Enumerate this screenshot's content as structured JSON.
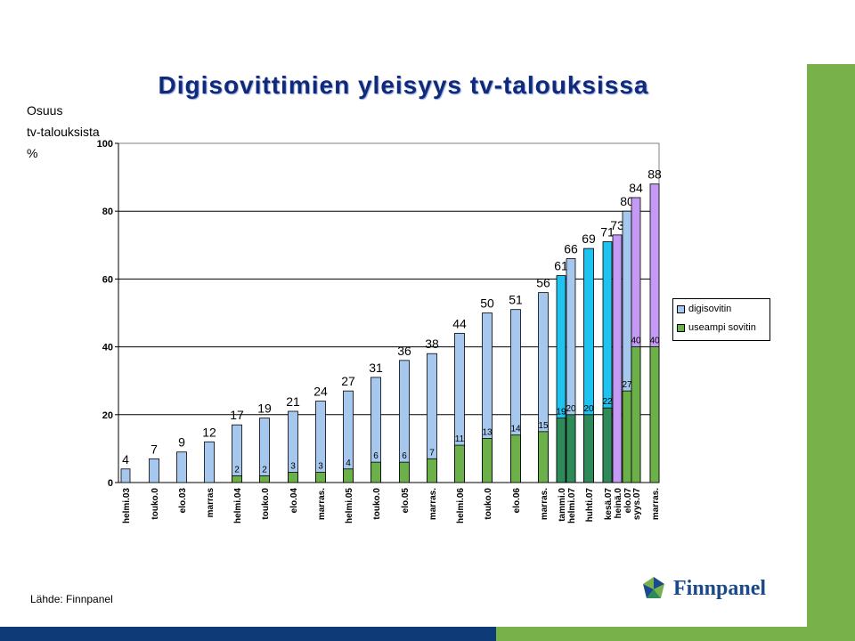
{
  "title": "Digisovittimien yleisyys tv-talouksissa",
  "ylabel_lines": [
    "Osuus",
    "tv-talouksista",
    "%"
  ],
  "source": "Lähde: Finnpanel",
  "logo_text": "Finnpanel",
  "colors": {
    "digisovitin_light": "#a6c8ef",
    "digisovitin_cyan": "#1fc3f0",
    "digisovitin_purple": "#c59af4",
    "useampi_light": "#6cb049",
    "useampi_dark": "#2e8a58",
    "accent_green": "#78b04a",
    "navy": "#0e3b78",
    "title": "#10297a"
  },
  "chart_data": {
    "type": "bar",
    "title": "Digisovittimien yleisyys tv-talouksissa",
    "ylabel": "Osuus tv-talouksista %",
    "ylim": [
      0,
      100
    ],
    "yticks": [
      0,
      20,
      40,
      60,
      80,
      100
    ],
    "grid": true,
    "legend_position": "right",
    "categories": [
      "helmi.03",
      "touko.0",
      "elo.03",
      "marras",
      "helmi.04",
      "touko.0",
      "elo.04",
      "marras.",
      "helmi.05",
      "touko.0",
      "elo.05",
      "marras.",
      "helmi.06",
      "touko.0",
      "elo.06",
      "marras.",
      "tammi.0",
      "helmi.07",
      "huhti.07",
      "kesä.07",
      "heinä.0",
      "elo.07",
      "syys.07",
      "marras."
    ],
    "series": [
      {
        "name": "digisovitin",
        "values": [
          4,
          7,
          9,
          12,
          17,
          19,
          21,
          24,
          27,
          31,
          36,
          38,
          44,
          50,
          51,
          56,
          61,
          66,
          69,
          71,
          73,
          80,
          84,
          88
        ],
        "labels": [
          "4",
          "7",
          "9",
          "12",
          "17",
          "19",
          "21",
          "24",
          "27",
          "31",
          "36",
          "38",
          "44",
          "50",
          "51",
          "56",
          "61",
          "66",
          "69",
          "71",
          "73",
          "80",
          "84",
          "88"
        ]
      },
      {
        "name": "useampi sovitin",
        "values": [
          null,
          null,
          null,
          null,
          2,
          2,
          3,
          3,
          4,
          6,
          6,
          7,
          11,
          13,
          14,
          15,
          19,
          20,
          20,
          22,
          null,
          27,
          40,
          40
        ],
        "labels": [
          "",
          "",
          "",
          "",
          "2",
          "2",
          "3",
          "3",
          "4",
          "6",
          "6",
          "7",
          "11",
          "13",
          "14",
          "15",
          "19",
          "20",
          "20",
          "22",
          "",
          "27",
          "40",
          "40"
        ]
      }
    ]
  }
}
